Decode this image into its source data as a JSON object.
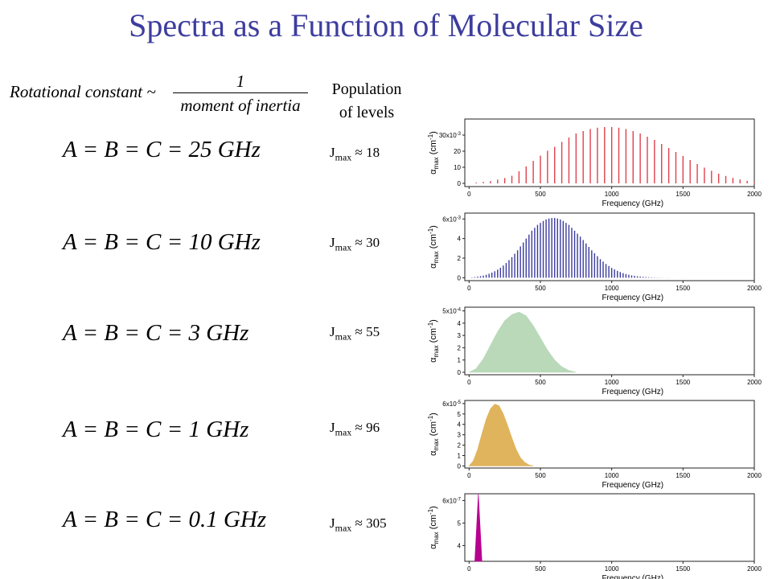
{
  "slide": {
    "title": "Spectra as a Function of Molecular Size",
    "rotational": {
      "lhs": "Rotational constant ~",
      "numerator": "1",
      "denominator": "moment of inertia"
    },
    "population_header_line1": "Population",
    "population_header_line2": "of levels"
  },
  "rows": [
    {
      "formula": "A = B = C = 25 GHz",
      "jmax_label": "J",
      "jmax_sub": "max",
      "jmax_value": "≈ 18"
    },
    {
      "formula": "A = B = C = 10 GHz",
      "jmax_label": "J",
      "jmax_sub": "max",
      "jmax_value": "≈ 30"
    },
    {
      "formula": "A = B = C = 3 GHz",
      "jmax_label": "J",
      "jmax_sub": "max",
      "jmax_value": "≈ 55"
    },
    {
      "formula": "A = B = C = 1 GHz",
      "jmax_label": "J",
      "jmax_sub": "max",
      "jmax_value": "≈ 96"
    },
    {
      "formula": "A = B = C = 0.1 GHz",
      "jmax_label": "J",
      "jmax_sub": "max",
      "jmax_value": "≈ 305"
    }
  ],
  "chart_data": [
    {
      "type": "bar",
      "xlabel": "Frequency (GHz)",
      "ylabel": "α max (cm-1)",
      "xlim": [
        -30,
        2000
      ],
      "ylim": [
        -2,
        40
      ],
      "x_ticks": [
        0,
        500,
        1000,
        1500,
        2000
      ],
      "y_ticks": [
        0,
        10,
        20,
        30
      ],
      "y_tick_labels": [
        "0",
        "10",
        "20",
        "30x10-3"
      ],
      "color": "#e0404c",
      "x": [
        50,
        100,
        150,
        200,
        250,
        300,
        350,
        400,
        450,
        500,
        550,
        600,
        650,
        700,
        750,
        800,
        850,
        900,
        950,
        1000,
        1050,
        1100,
        1150,
        1200,
        1250,
        1300,
        1350,
        1400,
        1450,
        1500,
        1550,
        1600,
        1650,
        1700,
        1750,
        1800,
        1850,
        1900,
        1950,
        2000
      ],
      "values": [
        0.5,
        0.9,
        1.4,
        2.3,
        3.3,
        4.7,
        7.5,
        10.5,
        14,
        17.2,
        20.3,
        22.7,
        25.8,
        28.5,
        31,
        32.5,
        33.8,
        34.6,
        35,
        35,
        34.6,
        33.8,
        32.5,
        31,
        29,
        27,
        24.5,
        22,
        19.5,
        17,
        14.5,
        12,
        9.8,
        7.8,
        6,
        4.6,
        3.4,
        2.4,
        1.6,
        1.0
      ]
    },
    {
      "type": "bar",
      "xlabel": "Frequency (GHz)",
      "ylabel": "α max (cm-1)",
      "xlim": [
        -30,
        2000
      ],
      "ylim": [
        -0.3,
        6.6
      ],
      "x_ticks": [
        0,
        500,
        1000,
        1500,
        2000
      ],
      "y_ticks": [
        0,
        2,
        4,
        6
      ],
      "y_tick_labels": [
        "0",
        "2",
        "4",
        "6x10-3"
      ],
      "color": "#3a3aa0",
      "x": [
        20,
        40,
        60,
        80,
        100,
        120,
        140,
        160,
        180,
        200,
        220,
        240,
        260,
        280,
        300,
        320,
        340,
        360,
        380,
        400,
        420,
        440,
        460,
        480,
        500,
        520,
        540,
        560,
        580,
        600,
        620,
        640,
        660,
        680,
        700,
        720,
        740,
        760,
        780,
        800,
        820,
        840,
        860,
        880,
        900,
        920,
        940,
        960,
        980,
        1000,
        1020,
        1040,
        1060,
        1080,
        1100,
        1120,
        1140,
        1160,
        1180,
        1200,
        1220,
        1240,
        1260,
        1280,
        1300,
        1320,
        1340,
        1360,
        1380,
        1400
      ],
      "values": [
        0.04,
        0.07,
        0.11,
        0.16,
        0.22,
        0.3,
        0.4,
        0.52,
        0.66,
        0.83,
        1.02,
        1.25,
        1.5,
        1.8,
        2.1,
        2.45,
        2.8,
        3.2,
        3.6,
        4.0,
        4.4,
        4.8,
        5.1,
        5.4,
        5.6,
        5.8,
        5.95,
        6.05,
        6.1,
        6.1,
        6.05,
        5.95,
        5.8,
        5.6,
        5.4,
        5.1,
        4.8,
        4.5,
        4.2,
        3.85,
        3.5,
        3.15,
        2.8,
        2.5,
        2.2,
        1.9,
        1.65,
        1.4,
        1.2,
        1.0,
        0.85,
        0.7,
        0.58,
        0.47,
        0.38,
        0.3,
        0.24,
        0.19,
        0.15,
        0.12,
        0.09,
        0.07,
        0.05,
        0.04,
        0.03,
        0.02,
        0.02,
        0.01,
        0.01,
        0.01
      ]
    },
    {
      "type": "area",
      "xlabel": "Frequency (GHz)",
      "ylabel": "α max (cm-1)",
      "xlim": [
        -30,
        2000
      ],
      "ylim": [
        -0.2,
        5.3
      ],
      "x_ticks": [
        0,
        500,
        1000,
        1500,
        2000
      ],
      "y_ticks": [
        0,
        1,
        2,
        3,
        4,
        5
      ],
      "y_tick_labels": [
        "0",
        "1",
        "2",
        "3",
        "4",
        "5x10-4"
      ],
      "color": "#b9d9b9",
      "x": [
        0,
        50,
        100,
        150,
        200,
        250,
        300,
        350,
        400,
        450,
        500,
        550,
        600,
        650,
        700,
        750
      ],
      "values": [
        0,
        0.3,
        1.1,
        2.2,
        3.3,
        4.2,
        4.7,
        4.9,
        4.6,
        3.8,
        2.8,
        1.8,
        1.0,
        0.45,
        0.15,
        0
      ]
    },
    {
      "type": "area",
      "xlabel": "Frequency (GHz)",
      "ylabel": "α max (cm-1)",
      "xlim": [
        -30,
        2000
      ],
      "ylim": [
        -0.2,
        6.3
      ],
      "x_ticks": [
        0,
        500,
        1000,
        1500,
        2000
      ],
      "y_ticks": [
        0,
        1,
        2,
        3,
        4,
        5,
        6
      ],
      "y_tick_labels": [
        "0",
        "1",
        "2",
        "3",
        "4",
        "5",
        "6x10-5"
      ],
      "color": "#e0b45c",
      "x": [
        0,
        30,
        60,
        90,
        120,
        150,
        180,
        210,
        240,
        270,
        300,
        330,
        360,
        390,
        420,
        450
      ],
      "values": [
        0,
        0.5,
        1.6,
        3.1,
        4.5,
        5.5,
        5.95,
        5.8,
        5.0,
        3.9,
        2.7,
        1.6,
        0.8,
        0.35,
        0.1,
        0
      ]
    },
    {
      "type": "area",
      "xlabel": "Frequency (GHz)",
      "ylabel": "α max (cm-1)",
      "xlim": [
        -30,
        2000
      ],
      "ylim": [
        3.3,
        6.3
      ],
      "x_ticks": [
        0,
        500,
        1000,
        1500,
        2000
      ],
      "y_ticks": [
        4,
        5,
        6
      ],
      "y_tick_labels": [
        "4",
        "5",
        "6x10-7"
      ],
      "color": "#b8008f",
      "x": [
        40,
        65,
        90
      ],
      "values": [
        3.3,
        6.3,
        3.3
      ]
    }
  ]
}
